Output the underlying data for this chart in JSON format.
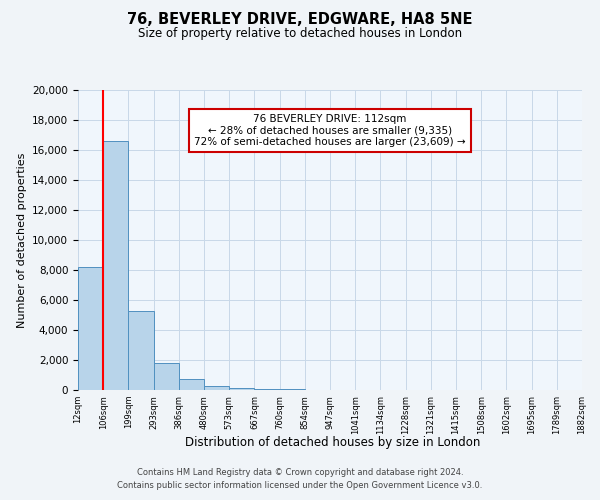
{
  "title": "76, BEVERLEY DRIVE, EDGWARE, HA8 5NE",
  "subtitle": "Size of property relative to detached houses in London",
  "xlabel": "Distribution of detached houses by size in London",
  "ylabel": "Number of detached properties",
  "bin_labels": [
    "12sqm",
    "106sqm",
    "199sqm",
    "293sqm",
    "386sqm",
    "480sqm",
    "573sqm",
    "667sqm",
    "760sqm",
    "854sqm",
    "947sqm",
    "1041sqm",
    "1134sqm",
    "1228sqm",
    "1321sqm",
    "1415sqm",
    "1508sqm",
    "1602sqm",
    "1695sqm",
    "1789sqm",
    "1882sqm"
  ],
  "bar_heights": [
    8200,
    16600,
    5250,
    1800,
    750,
    300,
    150,
    100,
    50,
    0,
    0,
    0,
    0,
    0,
    0,
    0,
    0,
    0,
    0,
    0
  ],
  "bar_color": "#b8d4ea",
  "bar_edge_color": "#5090c0",
  "red_line_x": 1,
  "ylim": [
    0,
    20000
  ],
  "yticks": [
    0,
    2000,
    4000,
    6000,
    8000,
    10000,
    12000,
    14000,
    16000,
    18000,
    20000
  ],
  "annotation_title": "76 BEVERLEY DRIVE: 112sqm",
  "annotation_line1": "← 28% of detached houses are smaller (9,335)",
  "annotation_line2": "72% of semi-detached houses are larger (23,609) →",
  "footer_line1": "Contains HM Land Registry data © Crown copyright and database right 2024.",
  "footer_line2": "Contains public sector information licensed under the Open Government Licence v3.0.",
  "grid_color": "#c8d8e8",
  "background_color": "#f0f4f8",
  "plot_bg_color": "#f0f6fc"
}
